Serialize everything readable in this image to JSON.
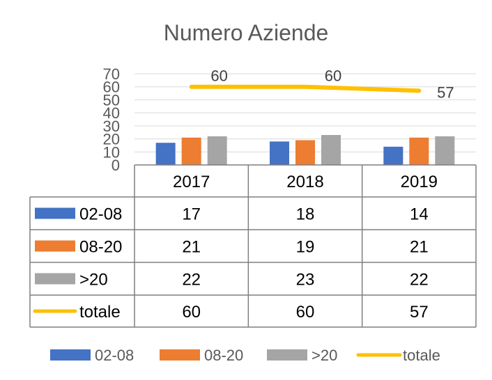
{
  "chart_data": {
    "type": "bar",
    "title": "Numero Aziende",
    "categories": [
      "2017",
      "2018",
      "2019"
    ],
    "series": [
      {
        "name": "02-08",
        "type": "bar",
        "color": "#4472C4",
        "values": [
          17,
          18,
          14
        ]
      },
      {
        "name": "08-20",
        "type": "bar",
        "color": "#ED7D31",
        "values": [
          21,
          19,
          21
        ]
      },
      {
        "name": ">20",
        "type": "bar",
        "color": "#A5A5A5",
        "values": [
          22,
          23,
          22
        ]
      },
      {
        "name": "totale",
        "type": "line",
        "color": "#FFC000",
        "values": [
          60,
          60,
          57
        ],
        "data_labels": true
      }
    ],
    "ylim": [
      0,
      70
    ],
    "yticks": [
      0,
      10,
      20,
      30,
      40,
      50,
      60,
      70
    ],
    "grid": true,
    "data_table": true,
    "legend": "bottom"
  }
}
